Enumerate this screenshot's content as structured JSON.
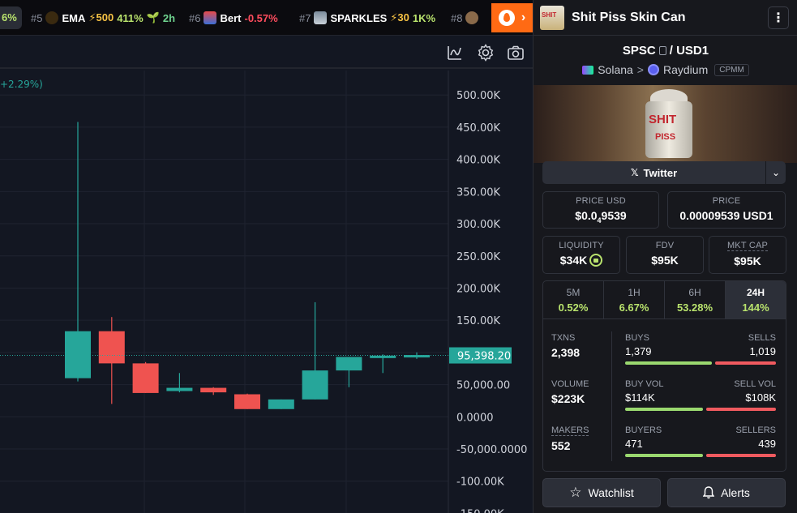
{
  "ticker": {
    "first_partial": "6%",
    "items": [
      {
        "rank": "#5",
        "symbol": "EMA",
        "boost": "⚡500",
        "change": "411%",
        "age": "2h",
        "change_dir": "up"
      },
      {
        "rank": "#6",
        "symbol": "Bert",
        "change": "-0.57%",
        "change_dir": "down"
      },
      {
        "rank": "#7",
        "symbol": "SPARKLES",
        "boost": "⚡30",
        "change": "1K%",
        "change_dir": "up"
      },
      {
        "rank": "#8",
        "symbol": "",
        "change": "",
        "change_dir": "up"
      }
    ]
  },
  "chart": {
    "change_partial": "+2.29%)",
    "price_tag": "95,398.20"
  },
  "chart_data": {
    "type": "candlestick",
    "y_ticks": [
      "500.00K",
      "450.00K",
      "400.00K",
      "350.00K",
      "300.00K",
      "250.00K",
      "200.00K",
      "150.00K",
      "100.00K",
      "50,000.00",
      "0.0000",
      "-50,000.0000",
      "-100.00K",
      "-150.00K"
    ],
    "y_tick_values": [
      500000,
      450000,
      400000,
      350000,
      300000,
      250000,
      200000,
      150000,
      100000,
      50000,
      0,
      -50000,
      -100000,
      -150000
    ],
    "ylim": [
      -150000,
      530000
    ],
    "last_price": 95398.2,
    "candles": [
      {
        "open": 60000,
        "close": 133000,
        "high": 458000,
        "low": 55000
      },
      {
        "open": 133000,
        "close": 83000,
        "high": 155000,
        "low": 20000
      },
      {
        "open": 83000,
        "close": 37000,
        "high": 85000,
        "low": 37000
      },
      {
        "open": 40000,
        "close": 45000,
        "high": 68000,
        "low": 38000
      },
      {
        "open": 45000,
        "close": 38000,
        "high": 46000,
        "low": 34000
      },
      {
        "open": 35000,
        "close": 12000,
        "high": 36000,
        "low": 12000
      },
      {
        "open": 12000,
        "close": 27000,
        "high": 27000,
        "low": 12000
      },
      {
        "open": 27000,
        "close": 72000,
        "high": 178000,
        "low": 27000
      },
      {
        "open": 72000,
        "close": 93000,
        "high": 93000,
        "low": 46000
      },
      {
        "open": 93000,
        "close": 95000,
        "high": 97000,
        "low": 68000
      },
      {
        "open": 95000,
        "close": 96000,
        "high": 100000,
        "low": 90000
      }
    ]
  },
  "panel": {
    "pair_name": "Shit Piss Skin Can",
    "thumb_text": "SHIT",
    "base": "SPSC",
    "quote": "USD1",
    "separator": "/",
    "chain": "Solana",
    "dex": "Raydium",
    "pool_type": "CPMM",
    "chevron": ">",
    "banner_text_1": "SHIT",
    "banner_text_2": "PISS",
    "twitter_label": "Twitter",
    "price_usd_label": "PRICE USD",
    "price_usd_value_a": "$0.0",
    "price_usd_value_sub": "4",
    "price_usd_value_b": "9539",
    "price_label": "PRICE",
    "price_value": "0.00009539 USD1",
    "liquidity_label": "LIQUIDITY",
    "liquidity_value": "$34K",
    "fdv_label": "FDV",
    "fdv_value": "$95K",
    "mktcap_label": "MKT CAP",
    "mktcap_value": "$95K",
    "timeframes": [
      {
        "label": "5M",
        "change": "0.52%"
      },
      {
        "label": "1H",
        "change": "6.67%"
      },
      {
        "label": "6H",
        "change": "53.28%"
      },
      {
        "label": "24H",
        "change": "144%"
      }
    ],
    "txns_label": "TXNS",
    "txns_value": "2,398",
    "volume_label": "VOLUME",
    "volume_value": "$223K",
    "makers_label": "MAKERS",
    "makers_value": "552",
    "buys_label": "BUYS",
    "buys_value": "1,379",
    "sells_label": "SELLS",
    "sells_value": "1,019",
    "buyvol_label": "BUY VOL",
    "buyvol_value": "$114K",
    "sellvol_label": "SELL VOL",
    "sellvol_value": "$108K",
    "buyers_label": "BUYERS",
    "buyers_value": "471",
    "sellers_label": "SELLERS",
    "sellers_value": "439",
    "buy_ratios": [
      0.575,
      0.514,
      0.518
    ],
    "watchlist_label": "Watchlist",
    "alerts_label": "Alerts"
  },
  "colors": {
    "up": "#26a69a",
    "down": "#ef5350",
    "accent": "#ff6a14",
    "positive_text": "#b9e36d"
  }
}
